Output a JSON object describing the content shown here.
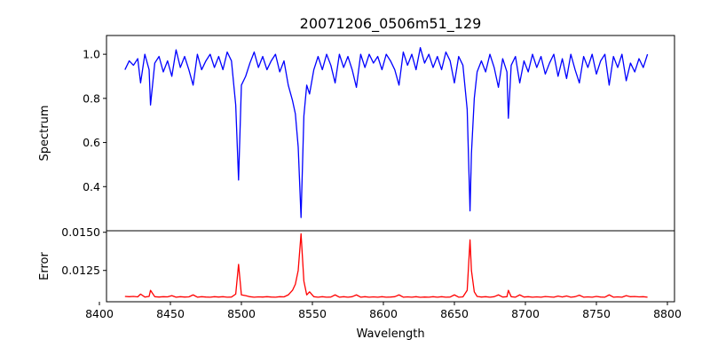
{
  "chart_data": [
    {
      "type": "line",
      "title": "20071206_0506m51_129",
      "xlabel": "",
      "ylabel": "Spectrum",
      "xlim": [
        8405,
        8805
      ],
      "ylim": [
        0.2,
        1.085
      ],
      "yticks": [
        0.4,
        0.6,
        0.8,
        1.0
      ],
      "ytick_labels": [
        "0.4",
        "0.6",
        "0.8",
        "1.0"
      ],
      "color": "#0000ff",
      "grid": false,
      "series": [
        {
          "name": "",
          "x": [
            8418,
            8421,
            8424,
            8427,
            8429,
            8432,
            8435,
            8436,
            8439,
            8442,
            8445,
            8448,
            8451,
            8454,
            8457,
            8460,
            8463,
            8466,
            8469,
            8472,
            8475,
            8478,
            8481,
            8484,
            8487,
            8490,
            8493,
            8496,
            8498,
            8500,
            8503,
            8506,
            8509,
            8512,
            8515,
            8518,
            8521,
            8524,
            8527,
            8530,
            8533,
            8536,
            8538,
            8540,
            8542,
            8544,
            8546,
            8548,
            8551,
            8554,
            8557,
            8560,
            8563,
            8566,
            8569,
            8572,
            8575,
            8578,
            8581,
            8584,
            8587,
            8590,
            8593,
            8596,
            8599,
            8602,
            8605,
            8608,
            8611,
            8614,
            8617,
            8620,
            8623,
            8626,
            8629,
            8632,
            8635,
            8638,
            8641,
            8644,
            8647,
            8650,
            8653,
            8656,
            8659,
            8661,
            8662,
            8664,
            8666,
            8669,
            8672,
            8675,
            8678,
            8681,
            8684,
            8687,
            8688,
            8690,
            8693,
            8696,
            8699,
            8702,
            8705,
            8708,
            8711,
            8714,
            8717,
            8720,
            8723,
            8726,
            8729,
            8732,
            8735,
            8738,
            8741,
            8744,
            8747,
            8750,
            8753,
            8756,
            8759,
            8762,
            8765,
            8768,
            8771,
            8774,
            8777,
            8780,
            8783,
            8786
          ],
          "y": [
            0.93,
            0.97,
            0.95,
            0.98,
            0.87,
            1.0,
            0.93,
            0.77,
            0.96,
            0.99,
            0.92,
            0.97,
            0.9,
            1.02,
            0.94,
            0.99,
            0.93,
            0.86,
            1.0,
            0.93,
            0.97,
            1.0,
            0.94,
            0.99,
            0.93,
            1.01,
            0.97,
            0.77,
            0.43,
            0.86,
            0.9,
            0.96,
            1.01,
            0.94,
            0.99,
            0.93,
            0.97,
            1.0,
            0.92,
            0.97,
            0.86,
            0.79,
            0.73,
            0.58,
            0.26,
            0.72,
            0.86,
            0.82,
            0.93,
            0.99,
            0.93,
            1.0,
            0.95,
            0.87,
            1.0,
            0.94,
            0.99,
            0.93,
            0.85,
            1.0,
            0.94,
            1.0,
            0.96,
            0.99,
            0.93,
            1.0,
            0.97,
            0.93,
            0.86,
            1.01,
            0.95,
            1.0,
            0.93,
            1.03,
            0.96,
            1.0,
            0.94,
            0.99,
            0.93,
            1.01,
            0.97,
            0.87,
            0.99,
            0.95,
            0.75,
            0.29,
            0.55,
            0.8,
            0.92,
            0.97,
            0.92,
            1.0,
            0.94,
            0.85,
            0.98,
            0.92,
            0.71,
            0.95,
            0.99,
            0.87,
            0.97,
            0.92,
            1.0,
            0.94,
            0.99,
            0.91,
            0.96,
            1.0,
            0.9,
            0.98,
            0.89,
            1.0,
            0.93,
            0.87,
            0.99,
            0.94,
            1.0,
            0.91,
            0.97,
            1.0,
            0.86,
            0.99,
            0.94,
            1.0,
            0.88,
            0.96,
            0.92,
            0.98,
            0.94,
            1.0
          ]
        }
      ]
    },
    {
      "type": "line",
      "title": "",
      "xlabel": "Wavelength",
      "ylabel": "Error",
      "xlim": [
        8405,
        8805
      ],
      "ylim": [
        0.01045,
        0.0151
      ],
      "xticks": [
        8400,
        8450,
        8500,
        8550,
        8600,
        8650,
        8700,
        8750,
        8800
      ],
      "xtick_labels": [
        "8400",
        "8450",
        "8500",
        "8550",
        "8600",
        "8650",
        "8700",
        "8750",
        "8800"
      ],
      "yticks": [
        0.0125,
        0.015
      ],
      "ytick_labels": [
        "0.0125",
        "0.0150"
      ],
      "color": "#ff0000",
      "grid": false,
      "series": [
        {
          "name": "",
          "x": [
            8418,
            8421,
            8424,
            8427,
            8429,
            8432,
            8435,
            8436,
            8439,
            8442,
            8445,
            8448,
            8451,
            8454,
            8457,
            8460,
            8463,
            8466,
            8469,
            8472,
            8475,
            8478,
            8481,
            8484,
            8487,
            8490,
            8493,
            8496,
            8498,
            8500,
            8503,
            8506,
            8509,
            8512,
            8515,
            8518,
            8521,
            8524,
            8527,
            8530,
            8533,
            8536,
            8538,
            8540,
            8542,
            8544,
            8546,
            8548,
            8551,
            8554,
            8557,
            8560,
            8563,
            8566,
            8569,
            8572,
            8575,
            8578,
            8581,
            8584,
            8587,
            8590,
            8593,
            8596,
            8599,
            8602,
            8605,
            8608,
            8611,
            8614,
            8617,
            8620,
            8623,
            8626,
            8629,
            8632,
            8635,
            8638,
            8641,
            8644,
            8647,
            8650,
            8653,
            8656,
            8659,
            8661,
            8662,
            8664,
            8666,
            8669,
            8672,
            8675,
            8678,
            8681,
            8684,
            8687,
            8688,
            8690,
            8693,
            8696,
            8699,
            8702,
            8705,
            8708,
            8711,
            8714,
            8717,
            8720,
            8723,
            8726,
            8729,
            8732,
            8735,
            8738,
            8741,
            8744,
            8747,
            8750,
            8753,
            8756,
            8759,
            8762,
            8765,
            8768,
            8771,
            8774,
            8777,
            8780,
            8783,
            8786
          ],
          "y": [
            0.0108,
            0.01078,
            0.0108,
            0.01077,
            0.01095,
            0.01076,
            0.0108,
            0.0112,
            0.01078,
            0.01076,
            0.01078,
            0.01077,
            0.01085,
            0.01075,
            0.01078,
            0.01076,
            0.01077,
            0.0109,
            0.01075,
            0.01078,
            0.01076,
            0.01075,
            0.01078,
            0.01076,
            0.01078,
            0.01075,
            0.01076,
            0.01095,
            0.0129,
            0.0109,
            0.01085,
            0.01078,
            0.01075,
            0.01077,
            0.01076,
            0.01078,
            0.01076,
            0.01075,
            0.01078,
            0.01077,
            0.0109,
            0.0112,
            0.0116,
            0.0125,
            0.0149,
            0.0118,
            0.0109,
            0.0111,
            0.01078,
            0.01075,
            0.01078,
            0.01075,
            0.01076,
            0.0109,
            0.01075,
            0.01078,
            0.01075,
            0.01078,
            0.0109,
            0.01075,
            0.01078,
            0.01075,
            0.01077,
            0.01075,
            0.01078,
            0.01075,
            0.01076,
            0.01078,
            0.0109,
            0.01075,
            0.01077,
            0.01075,
            0.01078,
            0.01074,
            0.01076,
            0.01075,
            0.01078,
            0.01075,
            0.01078,
            0.01075,
            0.01076,
            0.0109,
            0.01075,
            0.01077,
            0.0112,
            0.0145,
            0.0125,
            0.0111,
            0.0108,
            0.01076,
            0.01078,
            0.01075,
            0.01078,
            0.0109,
            0.01076,
            0.01078,
            0.0112,
            0.01078,
            0.01075,
            0.0109,
            0.01076,
            0.01078,
            0.01075,
            0.01077,
            0.01075,
            0.01079,
            0.01077,
            0.01075,
            0.01082,
            0.01076,
            0.01083,
            0.01075,
            0.01078,
            0.01088,
            0.01075,
            0.01077,
            0.01075,
            0.0108,
            0.01076,
            0.01075,
            0.0109,
            0.01075,
            0.01077,
            0.01075,
            0.01085,
            0.01078,
            0.01079,
            0.01077,
            0.01078,
            0.01075
          ]
        }
      ]
    }
  ]
}
